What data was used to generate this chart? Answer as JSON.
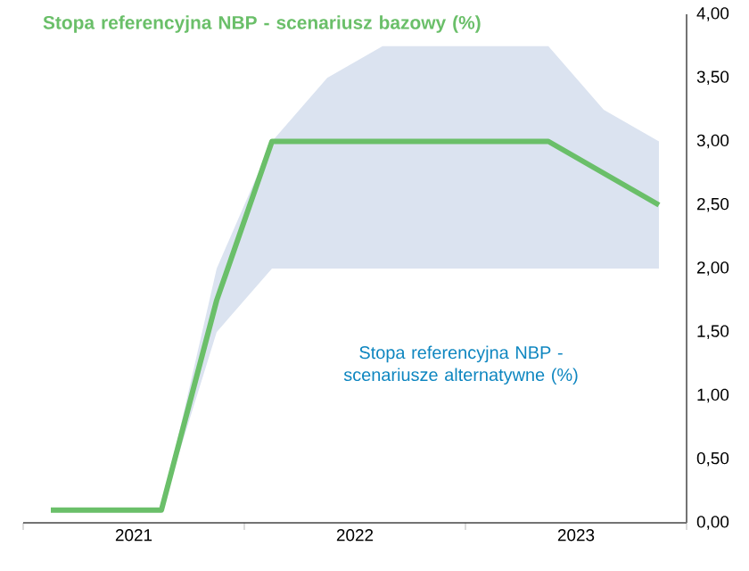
{
  "chart_data": {
    "type": "line",
    "title": "Stopa referencyjna NBP - scenariusz bazowy (%)",
    "annotations": [
      "Stopa referencyjna NBP - scenariusze alternatywne (%)"
    ],
    "x": [
      2021.125,
      2021.375,
      2021.625,
      2021.875,
      2022.125,
      2022.375,
      2022.625,
      2022.875,
      2023.125,
      2023.375,
      2023.625,
      2023.875
    ],
    "series": [
      {
        "color": "#6abf69",
        "values": [
          0.1,
          0.1,
          0.1,
          1.75,
          3.0,
          3.0,
          3.0,
          3.0,
          3.0,
          3.0,
          2.75,
          2.5
        ],
        "lower": [
          null,
          null,
          0.1,
          1.5,
          2.0,
          2.0,
          2.0,
          2.0,
          2.0,
          2.0,
          2.0,
          2.0
        ],
        "upper": [
          null,
          null,
          0.1,
          2.0,
          3.0,
          3.5,
          3.75,
          3.75,
          3.75,
          3.75,
          3.25,
          3.0
        ]
      }
    ],
    "xlim": [
      2021,
      2024
    ],
    "xticks": [
      {
        "value": 2021,
        "label": null
      },
      {
        "value": 2021.5,
        "label": "2021"
      },
      {
        "value": 2022,
        "label": null
      },
      {
        "value": 2022.5,
        "label": "2022"
      },
      {
        "value": 2023,
        "label": null
      },
      {
        "value": 2023.5,
        "label": "2023"
      },
      {
        "value": 2024,
        "label": null
      }
    ],
    "ylim": [
      0,
      4
    ],
    "yticks": [
      {
        "value": 0,
        "label": "0,00"
      },
      {
        "value": 0.5,
        "label": "0,50"
      },
      {
        "value": 1,
        "label": "1,00"
      },
      {
        "value": 1.5,
        "label": "1,50"
      },
      {
        "value": 2,
        "label": "2,00"
      },
      {
        "value": 2.5,
        "label": "2,50"
      },
      {
        "value": 3,
        "label": "3,00"
      },
      {
        "value": 3.5,
        "label": "3,50"
      },
      {
        "value": 4,
        "label": "4,00"
      }
    ],
    "marker": "none",
    "line_style": "solid"
  }
}
